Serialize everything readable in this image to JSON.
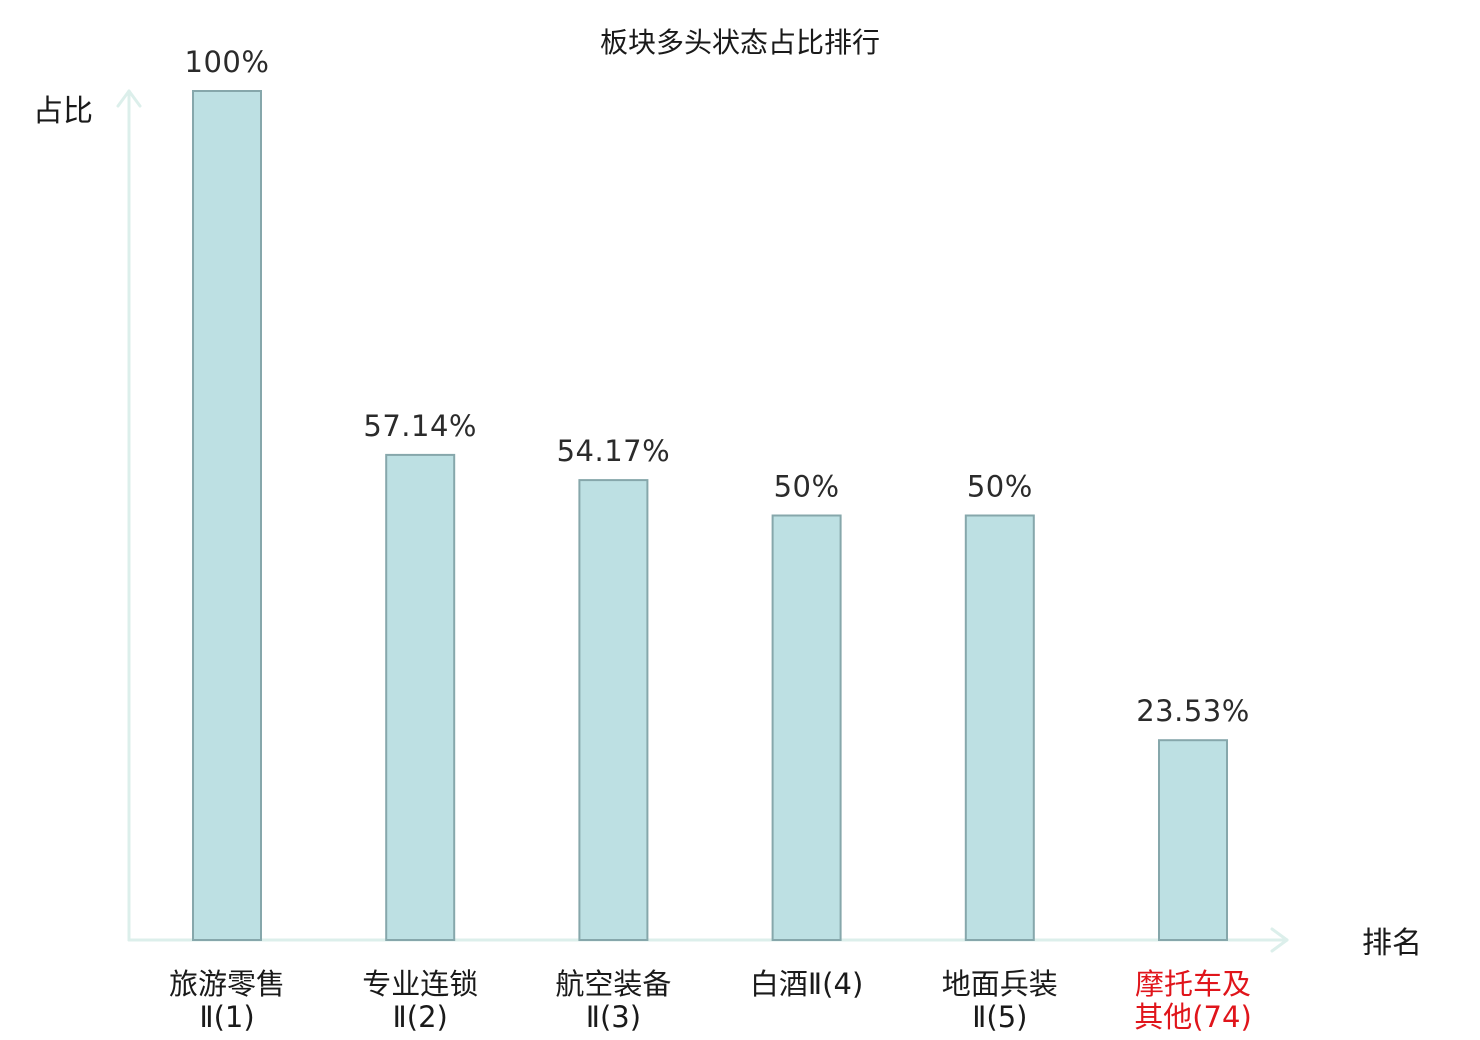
{
  "chart_data": {
    "type": "bar",
    "title": "板块多头状态占比排行",
    "ylabel": "占比",
    "xlabel": "排名",
    "ylim": [
      0,
      100
    ],
    "grid": false,
    "categories": [
      [
        "旅游零售",
        "Ⅱ(1)"
      ],
      [
        "专业连锁",
        "Ⅱ(2)"
      ],
      [
        "航空装备",
        "Ⅱ(3)"
      ],
      [
        "白酒Ⅱ(4)"
      ],
      [
        "地面兵装",
        "Ⅱ(5)"
      ],
      [
        "摩托车及",
        "其他(74)"
      ]
    ],
    "values": [
      100,
      57.14,
      54.17,
      50,
      50,
      23.53
    ],
    "value_labels": [
      "100%",
      "57.14%",
      "54.17%",
      "50%",
      "50%",
      "23.53%"
    ],
    "highlight_index": 5,
    "colors": {
      "bar_fill": "#bde0e3",
      "bar_stroke": "#86a7ab",
      "axis": "#dcefeb",
      "label": "#1a1a1a",
      "value_label": "#2b2b2b",
      "highlight": "#e0151b"
    }
  }
}
